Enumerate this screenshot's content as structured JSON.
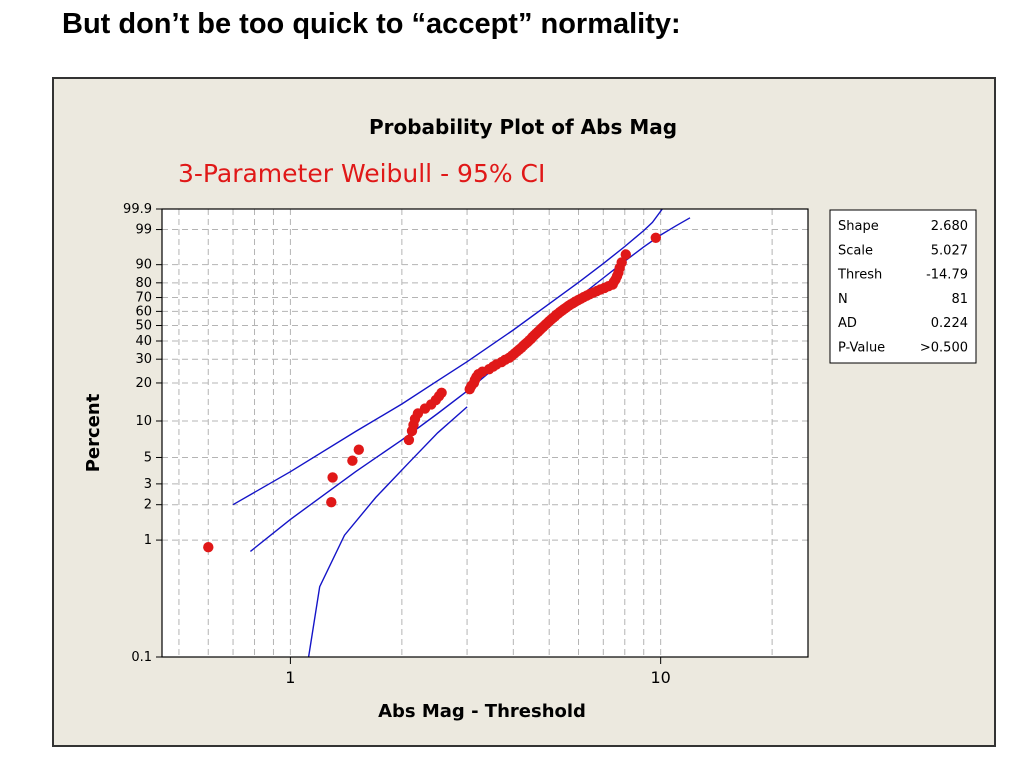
{
  "slide": {
    "title": "But don’t be too quick to “accept” normality:"
  },
  "colors": {
    "frame_background": "#ece9df",
    "plot_background": "#ffffff",
    "points": "#e01818",
    "ci_lines": "#1414c8",
    "subtitle": "#e01818",
    "grid": "#b4b4b4"
  },
  "chart_data": {
    "type": "scatter",
    "title": "Probability Plot of Abs Mag",
    "subtitle": "3-Parameter Weibull - 95% CI",
    "xlabel": "Abs Mag - Threshold",
    "ylabel": "Percent",
    "x_scale": "log",
    "y_scale": "weibull-probability",
    "xlim": [
      0.45,
      25
    ],
    "ylim": [
      0.1,
      99.9
    ],
    "x_ticks": [
      1,
      10
    ],
    "x_tick_labels": [
      "1",
      "10"
    ],
    "y_ticks": [
      0.1,
      1,
      2,
      3,
      5,
      10,
      20,
      30,
      40,
      50,
      60,
      70,
      80,
      90,
      99,
      99.9
    ],
    "y_tick_labels": [
      "0.1",
      "1",
      "2",
      "3",
      "5",
      "10",
      "20",
      "30",
      "40",
      "50",
      "60",
      "70",
      "80",
      "90",
      "99",
      "99.9"
    ],
    "x_minor_gridlines": [
      0.5,
      0.6,
      0.7,
      0.8,
      0.9,
      2,
      3,
      4,
      5,
      6,
      7,
      8,
      9,
      20
    ],
    "grid": true,
    "legend": "none",
    "points": [
      [
        0.6,
        0.87
      ],
      [
        1.29,
        2.1
      ],
      [
        1.3,
        3.4
      ],
      [
        1.47,
        4.7
      ],
      [
        1.53,
        5.8
      ],
      [
        2.09,
        7.0
      ],
      [
        2.13,
        8.3
      ],
      [
        2.15,
        9.3
      ],
      [
        2.17,
        10.4
      ],
      [
        2.21,
        11.5
      ],
      [
        2.31,
        12.6
      ],
      [
        2.4,
        13.6
      ],
      [
        2.47,
        14.7
      ],
      [
        2.52,
        15.8
      ],
      [
        2.56,
        16.8
      ],
      [
        3.05,
        17.9
      ],
      [
        3.08,
        19.0
      ],
      [
        3.13,
        20.0
      ],
      [
        3.15,
        21.1
      ],
      [
        3.18,
        22.2
      ],
      [
        3.22,
        23.3
      ],
      [
        3.3,
        24.3
      ],
      [
        3.44,
        25.4
      ],
      [
        3.53,
        26.5
      ],
      [
        3.6,
        27.5
      ],
      [
        3.72,
        28.6
      ],
      [
        3.8,
        29.7
      ],
      [
        3.9,
        30.7
      ],
      [
        3.97,
        31.8
      ],
      [
        4.03,
        32.9
      ],
      [
        4.09,
        34.0
      ],
      [
        4.15,
        35.0
      ],
      [
        4.21,
        36.1
      ],
      [
        4.26,
        37.2
      ],
      [
        4.31,
        38.2
      ],
      [
        4.37,
        39.3
      ],
      [
        4.42,
        40.4
      ],
      [
        4.47,
        41.4
      ],
      [
        4.51,
        42.5
      ],
      [
        4.56,
        43.6
      ],
      [
        4.61,
        44.6
      ],
      [
        4.66,
        45.7
      ],
      [
        4.71,
        46.8
      ],
      [
        4.76,
        47.9
      ],
      [
        4.81,
        48.9
      ],
      [
        4.86,
        50.0
      ],
      [
        4.91,
        51.1
      ],
      [
        4.96,
        52.1
      ],
      [
        5.01,
        53.2
      ],
      [
        5.07,
        54.3
      ],
      [
        5.12,
        55.3
      ],
      [
        5.18,
        56.4
      ],
      [
        5.23,
        57.5
      ],
      [
        5.29,
        58.5
      ],
      [
        5.35,
        59.6
      ],
      [
        5.42,
        60.7
      ],
      [
        5.49,
        61.8
      ],
      [
        5.56,
        62.8
      ],
      [
        5.63,
        63.9
      ],
      [
        5.71,
        65.0
      ],
      [
        5.8,
        66.0
      ],
      [
        5.89,
        67.1
      ],
      [
        5.99,
        68.2
      ],
      [
        6.09,
        69.2
      ],
      [
        6.2,
        70.3
      ],
      [
        6.32,
        71.4
      ],
      [
        6.44,
        72.4
      ],
      [
        6.58,
        73.5
      ],
      [
        6.73,
        74.6
      ],
      [
        6.88,
        75.7
      ],
      [
        7.05,
        76.7
      ],
      [
        7.23,
        77.8
      ],
      [
        7.42,
        78.9
      ],
      [
        7.47,
        80.5
      ],
      [
        7.55,
        82.0
      ],
      [
        7.62,
        84.0
      ],
      [
        7.69,
        86.0
      ],
      [
        7.75,
        88.5
      ],
      [
        7.85,
        91.0
      ],
      [
        8.05,
        94.0
      ],
      [
        9.7,
        98.0
      ]
    ],
    "ci_upper": [
      [
        0.7,
        2.0
      ],
      [
        1.0,
        3.8
      ],
      [
        1.5,
        8.2
      ],
      [
        2.0,
        13.7
      ],
      [
        2.5,
        20.8
      ],
      [
        3.0,
        28.8
      ],
      [
        4.0,
        47.0
      ],
      [
        5.0,
        65.5
      ],
      [
        6.0,
        80.3
      ],
      [
        7.0,
        90.5
      ],
      [
        8.0,
        96.3
      ],
      [
        9.0,
        98.9
      ],
      [
        9.5,
        99.5
      ],
      [
        10.1,
        99.9
      ]
    ],
    "ci_lower": [
      [
        0.78,
        0.8
      ],
      [
        1.0,
        1.5
      ],
      [
        1.5,
        3.8
      ],
      [
        2.0,
        7.0
      ],
      [
        2.5,
        11.5
      ],
      [
        3.0,
        17.3
      ],
      [
        4.0,
        33.5
      ],
      [
        5.0,
        52.5
      ],
      [
        6.0,
        70.0
      ],
      [
        7.0,
        83.0
      ],
      [
        8.0,
        91.5
      ],
      [
        9.0,
        96.2
      ],
      [
        10.0,
        98.4
      ],
      [
        11.0,
        99.3
      ],
      [
        12.0,
        99.7
      ]
    ],
    "ci_outer_lower": [
      [
        1.12,
        0.1
      ],
      [
        1.2,
        0.4
      ],
      [
        1.4,
        1.1
      ],
      [
        1.7,
        2.3
      ],
      [
        2.1,
        4.6
      ],
      [
        2.5,
        8.0
      ],
      [
        3.0,
        13.0
      ]
    ]
  },
  "stats_table": {
    "rows": [
      {
        "label": "Shape",
        "value": "2.680"
      },
      {
        "label": "Scale",
        "value": "5.027"
      },
      {
        "label": "Thresh",
        "value": "-14.79"
      },
      {
        "label": "N",
        "value": "81"
      },
      {
        "label": "AD",
        "value": "0.224"
      },
      {
        "label": "P-Value",
        "value": ">0.500"
      }
    ]
  }
}
